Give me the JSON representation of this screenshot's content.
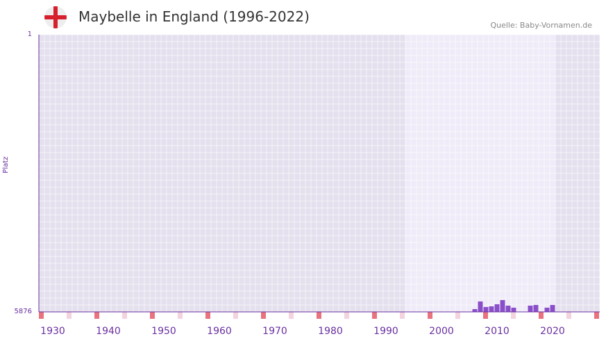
{
  "header": {
    "title": "Maybelle in England (1996-2022)",
    "source": "Quelle: Baby-Vornamen.de",
    "flag_icon": "england-flag-icon"
  },
  "chart_data": {
    "type": "bar",
    "title": "Maybelle in England (1996-2022)",
    "ylabel": "Platz",
    "ylim": [
      5876,
      1
    ],
    "y_ticks": [
      "1",
      "5876"
    ],
    "x_range": [
      1928,
      2028
    ],
    "x_ticks": [
      "1930",
      "1940",
      "1950",
      "1960",
      "1970",
      "1980",
      "1990",
      "2000",
      "2010",
      "2020"
    ],
    "highlight_range": [
      1994,
      2020
    ],
    "bars": [
      {
        "year": 2006,
        "rank": 5817
      },
      {
        "year": 2007,
        "rank": 5655
      },
      {
        "year": 2008,
        "rank": 5773
      },
      {
        "year": 2009,
        "rank": 5758
      },
      {
        "year": 2010,
        "rank": 5714
      },
      {
        "year": 2011,
        "rank": 5626
      },
      {
        "year": 2012,
        "rank": 5743
      },
      {
        "year": 2013,
        "rank": 5787
      },
      {
        "year": 2016,
        "rank": 5743
      },
      {
        "year": 2017,
        "rank": 5729
      },
      {
        "year": 2019,
        "rank": 5787
      },
      {
        "year": 2020,
        "rank": 5729
      }
    ],
    "colors": {
      "bar": "#8a4fc8",
      "bg": "#e4e0ee",
      "highlight": "#efebf8",
      "axis": "#6a2fa0",
      "marker": "#e8737e",
      "marker_light": "#f3d3de"
    }
  }
}
